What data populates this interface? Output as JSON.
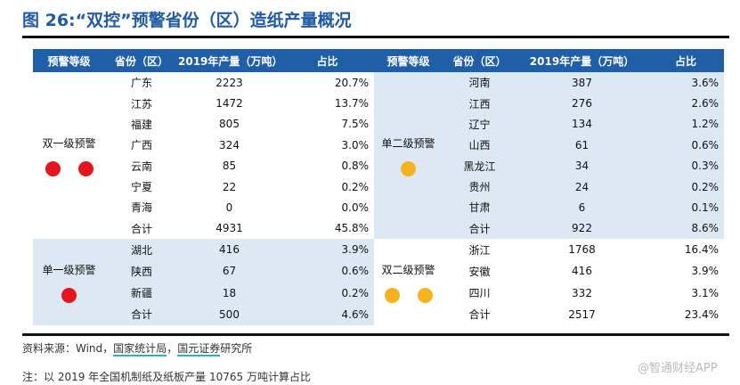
{
  "title": "图 26:“双控”预警省份（区）造纸产量概况",
  "headers": [
    "预警等级",
    "省份（区）",
    "2019年产量（万吨）",
    "占比",
    "预警等级",
    "省份（区）",
    "2019年产量（万吨）",
    "占比"
  ],
  "colors": {
    "red": "#e8141c",
    "orange": "#f5b21a",
    "header": "#1f5fa8",
    "band": "#dce9f5"
  },
  "left_groups": [
    {
      "level": "双一级预警",
      "dot_color": "red",
      "dots": 2,
      "rows": [
        [
          "广东",
          "2223",
          "20.7%"
        ],
        [
          "江苏",
          "1472",
          "13.7%"
        ],
        [
          "福建",
          "805",
          "7.5%"
        ],
        [
          "广西",
          "324",
          "3.0%"
        ],
        [
          "云南",
          "85",
          "0.8%"
        ],
        [
          "宁夏",
          "22",
          "0.2%"
        ],
        [
          "青海",
          "0",
          "0.0%"
        ],
        [
          "合计",
          "4931",
          "45.8%"
        ]
      ]
    },
    {
      "level": "单一级预警",
      "dot_color": "red",
      "dots": 1,
      "rows": [
        [
          "湖北",
          "416",
          "3.9%"
        ],
        [
          "陕西",
          "67",
          "0.6%"
        ],
        [
          "新疆",
          "18",
          "0.2%"
        ],
        [
          "合计",
          "500",
          "4.6%"
        ]
      ]
    }
  ],
  "right_groups": [
    {
      "level": "单二级预警",
      "dot_color": "orange",
      "dots": 1,
      "rows": [
        [
          "河南",
          "387",
          "3.6%"
        ],
        [
          "江西",
          "276",
          "2.6%"
        ],
        [
          "辽宁",
          "134",
          "1.2%"
        ],
        [
          "山西",
          "61",
          "0.6%"
        ],
        [
          "黑龙江",
          "34",
          "0.3%"
        ],
        [
          "贵州",
          "24",
          "0.2%"
        ],
        [
          "甘肃",
          "6",
          "0.1%"
        ],
        [
          "合计",
          "922",
          "8.6%"
        ]
      ]
    },
    {
      "level": "双二级预警",
      "dot_color": "orange",
      "dots": 2,
      "rows": [
        [
          "浙江",
          "1768",
          "16.4%"
        ],
        [
          "安徽",
          "416",
          "3.9%"
        ],
        [
          "四川",
          "332",
          "3.1%"
        ],
        [
          "合计",
          "2517",
          "23.4%"
        ]
      ]
    }
  ],
  "source": {
    "prefix": "资料来源：Wind，",
    "link1": "国家统计局",
    "sep": "，",
    "link2": "国元证券",
    "suffix": "研究所"
  },
  "note": "注：以 2019 年全国机制纸及纸板产量 10765 万吨计算占比",
  "watermark": "@智通财经APP"
}
